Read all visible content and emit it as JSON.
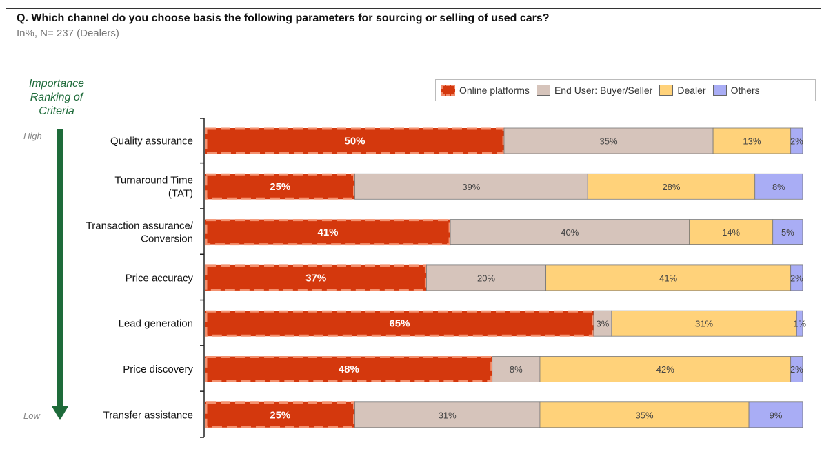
{
  "title": "Q. Which channel do you choose basis the following parameters for sourcing or selling of used cars?",
  "subtitle": "In%, N= 237 (Dealers)",
  "ranking": {
    "title_line1": "Importance",
    "title_line2": "Ranking of",
    "title_line3": "Criteria",
    "high": "High",
    "low": "Low"
  },
  "colors": {
    "online": "#d4380d",
    "online_dash": "#f4916f",
    "end_user": "#d6c4bb",
    "dealer": "#ffd27a",
    "others": "#a9adf5",
    "arrow": "#1e6b3a"
  },
  "chart_data": {
    "type": "bar",
    "orientation": "horizontal",
    "stacked": true,
    "categories": [
      "Quality assurance",
      "Turnaround Time (TAT)",
      "Transaction assurance/ Conversion",
      "Price accuracy",
      "Lead generation",
      "Price discovery",
      "Transfer assistance"
    ],
    "category_lines": [
      [
        "Quality assurance"
      ],
      [
        "Turnaround Time",
        "(TAT)"
      ],
      [
        "Transaction assurance/",
        "Conversion"
      ],
      [
        "Price accuracy"
      ],
      [
        "Lead generation"
      ],
      [
        "Price discovery"
      ],
      [
        "Transfer assistance"
      ]
    ],
    "series": [
      {
        "name": "Online platforms",
        "values": [
          50,
          25,
          41,
          37,
          65,
          48,
          25
        ],
        "labels": [
          "50%",
          "25%",
          "41%",
          "37%",
          "65%",
          "48%",
          "25%"
        ]
      },
      {
        "name": "End User: Buyer/Seller",
        "values": [
          35,
          39,
          40,
          20,
          3,
          8,
          31
        ],
        "labels": [
          "35%",
          "39%",
          "40%",
          "20%",
          "3%",
          "8%",
          "31%"
        ]
      },
      {
        "name": "Dealer",
        "values": [
          13,
          28,
          14,
          41,
          31,
          42,
          35
        ],
        "labels": [
          "13%",
          "28%",
          "14%",
          "41%",
          "31%",
          "42%",
          "35%"
        ]
      },
      {
        "name": "Others",
        "values": [
          2,
          8,
          5,
          2,
          1,
          2,
          9
        ],
        "labels": [
          "2%",
          "8%",
          "5%",
          "2%",
          "1%",
          "2%",
          "9%"
        ]
      }
    ],
    "xlim": [
      0,
      100
    ],
    "legend": "top-right",
    "grid": false
  }
}
